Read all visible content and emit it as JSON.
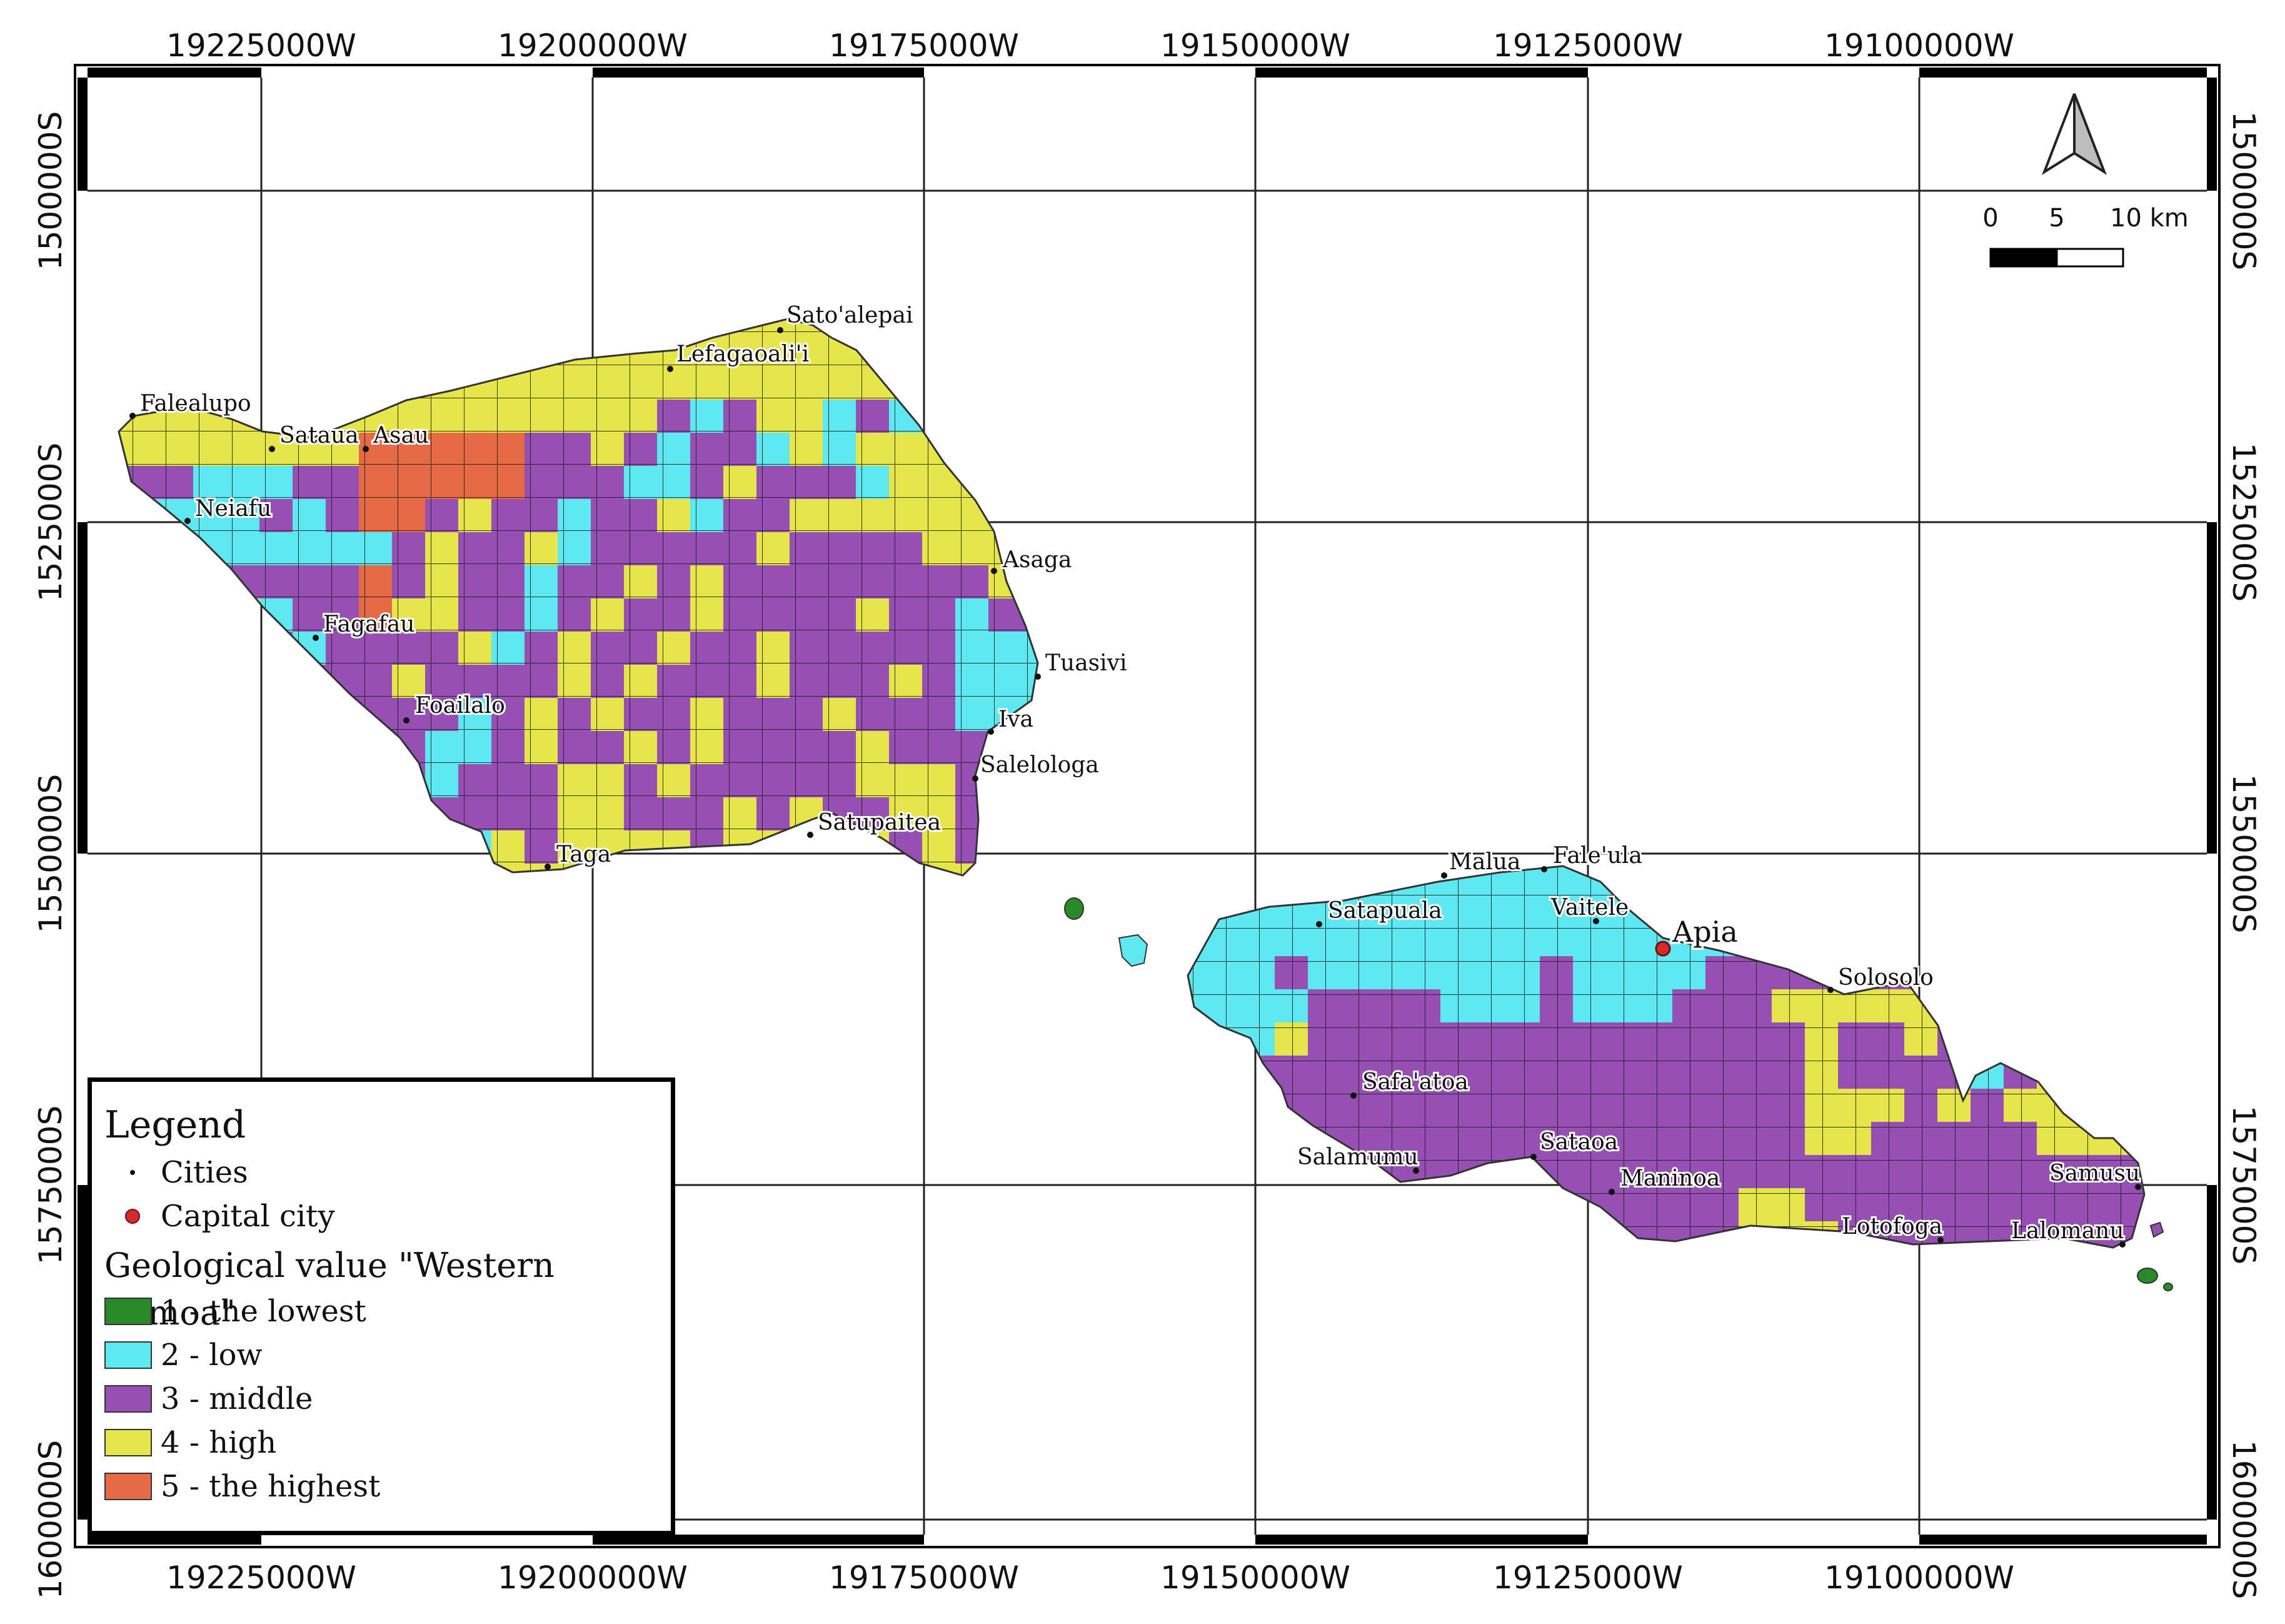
{
  "colors": {
    "lowest": "#2a8a2a",
    "low": "#5ee8f0",
    "middle": "#9650b4",
    "high": "#e6e64a",
    "highest": "#e66a46",
    "capital": "#d62a2a"
  },
  "grid": {
    "x_ticks_top": [
      "19225000W",
      "19200000W",
      "19175000W",
      "19150000W",
      "19125000W",
      "19100000W"
    ],
    "x_ticks_bottom": [
      "19225000W",
      "19200000W",
      "19175000W",
      "19150000W",
      "19125000W",
      "19100000W"
    ],
    "y_ticks_left": [
      "1500000S",
      "1525000S",
      "1550000S",
      "1575000S",
      "1600000S"
    ],
    "y_ticks_right": [
      "1500000S",
      "1525000S",
      "1550000S",
      "1575000S",
      "1600000S"
    ]
  },
  "north_arrow": {
    "icon": "north-arrow-icon"
  },
  "scale_bar": {
    "labels": [
      "0",
      "5",
      "10 km"
    ]
  },
  "cities": [
    "Sato'alepai",
    "Lefagaoali'i",
    "Falealupo",
    "Sataua",
    "Asau",
    "Neiafu",
    "Asaga",
    "Fagafau",
    "Tuasivi",
    "Foailalo",
    "Iva",
    "Salelologa",
    "Satupaitea",
    "Taga",
    "Malua",
    "Fale'ula",
    "Satapuala",
    "Vaitele",
    "Solosolo",
    "Safa'atoa",
    "Sataoa",
    "Salamumu",
    "Maninoa",
    "Samusu",
    "Lotofoga",
    "Lalomanu"
  ],
  "capital": "Apia",
  "legend": {
    "title": "Legend",
    "cities_label": "Cities",
    "capital_label": "Capital city",
    "group_title": "Geological value \"Western Samoa\"",
    "classes": [
      {
        "label": "1 - the lowest",
        "color": "#2a8a2a"
      },
      {
        "label": "2 - low",
        "color": "#5ee8f0"
      },
      {
        "label": "3 - middle",
        "color": "#9650b4"
      },
      {
        "label": "4 - high",
        "color": "#e6e64a"
      },
      {
        "label": "5 - the highest",
        "color": "#e66a46"
      }
    ]
  }
}
